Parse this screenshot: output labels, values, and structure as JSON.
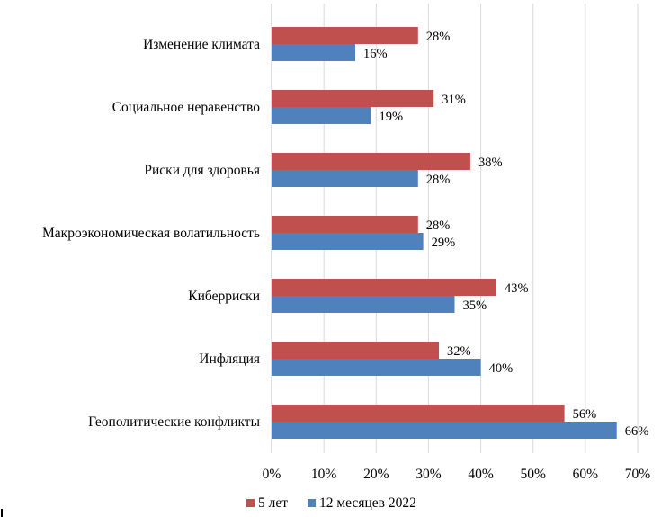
{
  "chart_data": {
    "type": "bar",
    "orientation": "horizontal",
    "categories": [
      "Изменение климата",
      "Социальное неравенство",
      "Риски для здоровья",
      "Макроэкономическая волатильность",
      "Киберриски",
      "Инфляция",
      "Геополитические конфликты"
    ],
    "series": [
      {
        "name": "5 лет",
        "color": "#C0504D",
        "values": [
          28,
          31,
          38,
          28,
          43,
          32,
          56
        ],
        "labels": [
          "28%",
          "31%",
          "38%",
          "28%",
          "43%",
          "32%",
          "56%"
        ]
      },
      {
        "name": "12 месяцев 2022",
        "color": "#4F81BD",
        "values": [
          16,
          19,
          28,
          29,
          35,
          40,
          66
        ],
        "labels": [
          "16%",
          "19%",
          "28%",
          "29%",
          "35%",
          "40%",
          "66%"
        ]
      }
    ],
    "xlim": [
      0,
      70
    ],
    "xticks": [
      "0%",
      "10%",
      "20%",
      "30%",
      "40%",
      "50%",
      "60%",
      "70%"
    ],
    "grid": "vertical",
    "legend": "bottom"
  }
}
